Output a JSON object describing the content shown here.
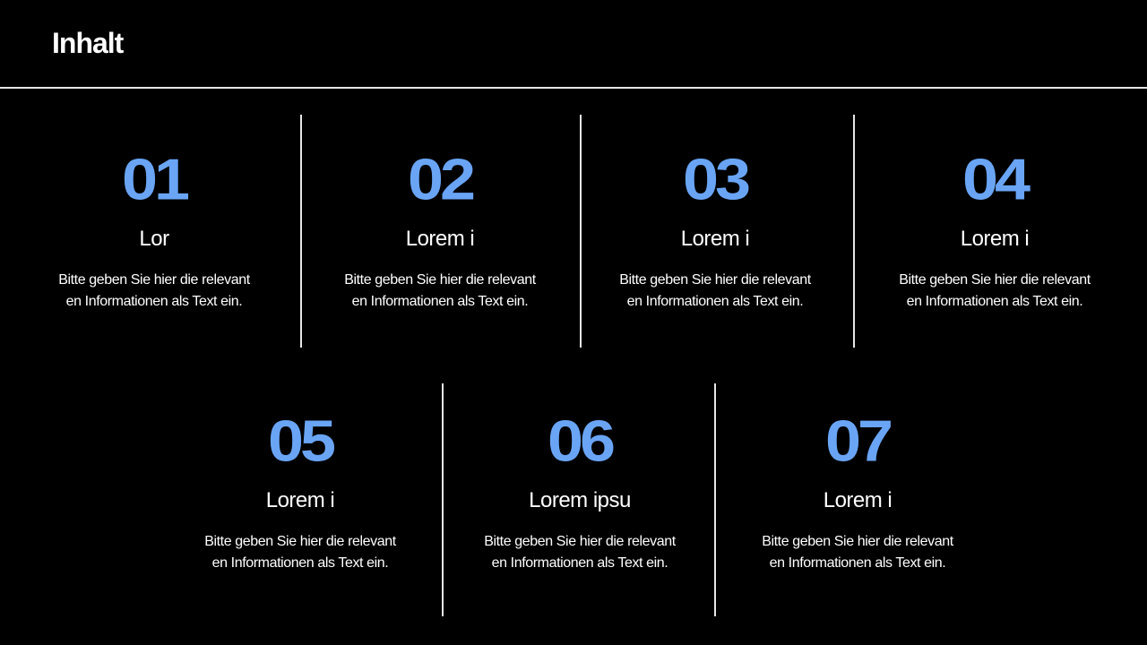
{
  "title": "Inhalt",
  "accent_color": "#6aa5f5",
  "items": [
    {
      "number": "01",
      "heading": "Lor",
      "line1": "Bitte geben Sie hier die relevant",
      "line2": "en Informationen als Text ein."
    },
    {
      "number": "02",
      "heading": "Lorem i",
      "line1": "Bitte geben Sie hier die relevant",
      "line2": "en Informationen als Text ein."
    },
    {
      "number": "03",
      "heading": "Lorem i",
      "line1": "Bitte geben Sie hier die relevant",
      "line2": "en Informationen als Text ein."
    },
    {
      "number": "04",
      "heading": "Lorem i",
      "line1": "Bitte geben Sie hier die relevant",
      "line2": "en Informationen als Text ein."
    },
    {
      "number": "05",
      "heading": "Lorem i",
      "line1": "Bitte geben Sie hier die relevant",
      "line2": "en Informationen als Text ein."
    },
    {
      "number": "06",
      "heading": "Lorem ipsu",
      "line1": "Bitte geben Sie hier die relevant",
      "line2": "en Informationen als Text ein."
    },
    {
      "number": "07",
      "heading": "Lorem i",
      "line1": "Bitte geben Sie hier die relevant",
      "line2": "en Informationen als Text ein."
    }
  ]
}
